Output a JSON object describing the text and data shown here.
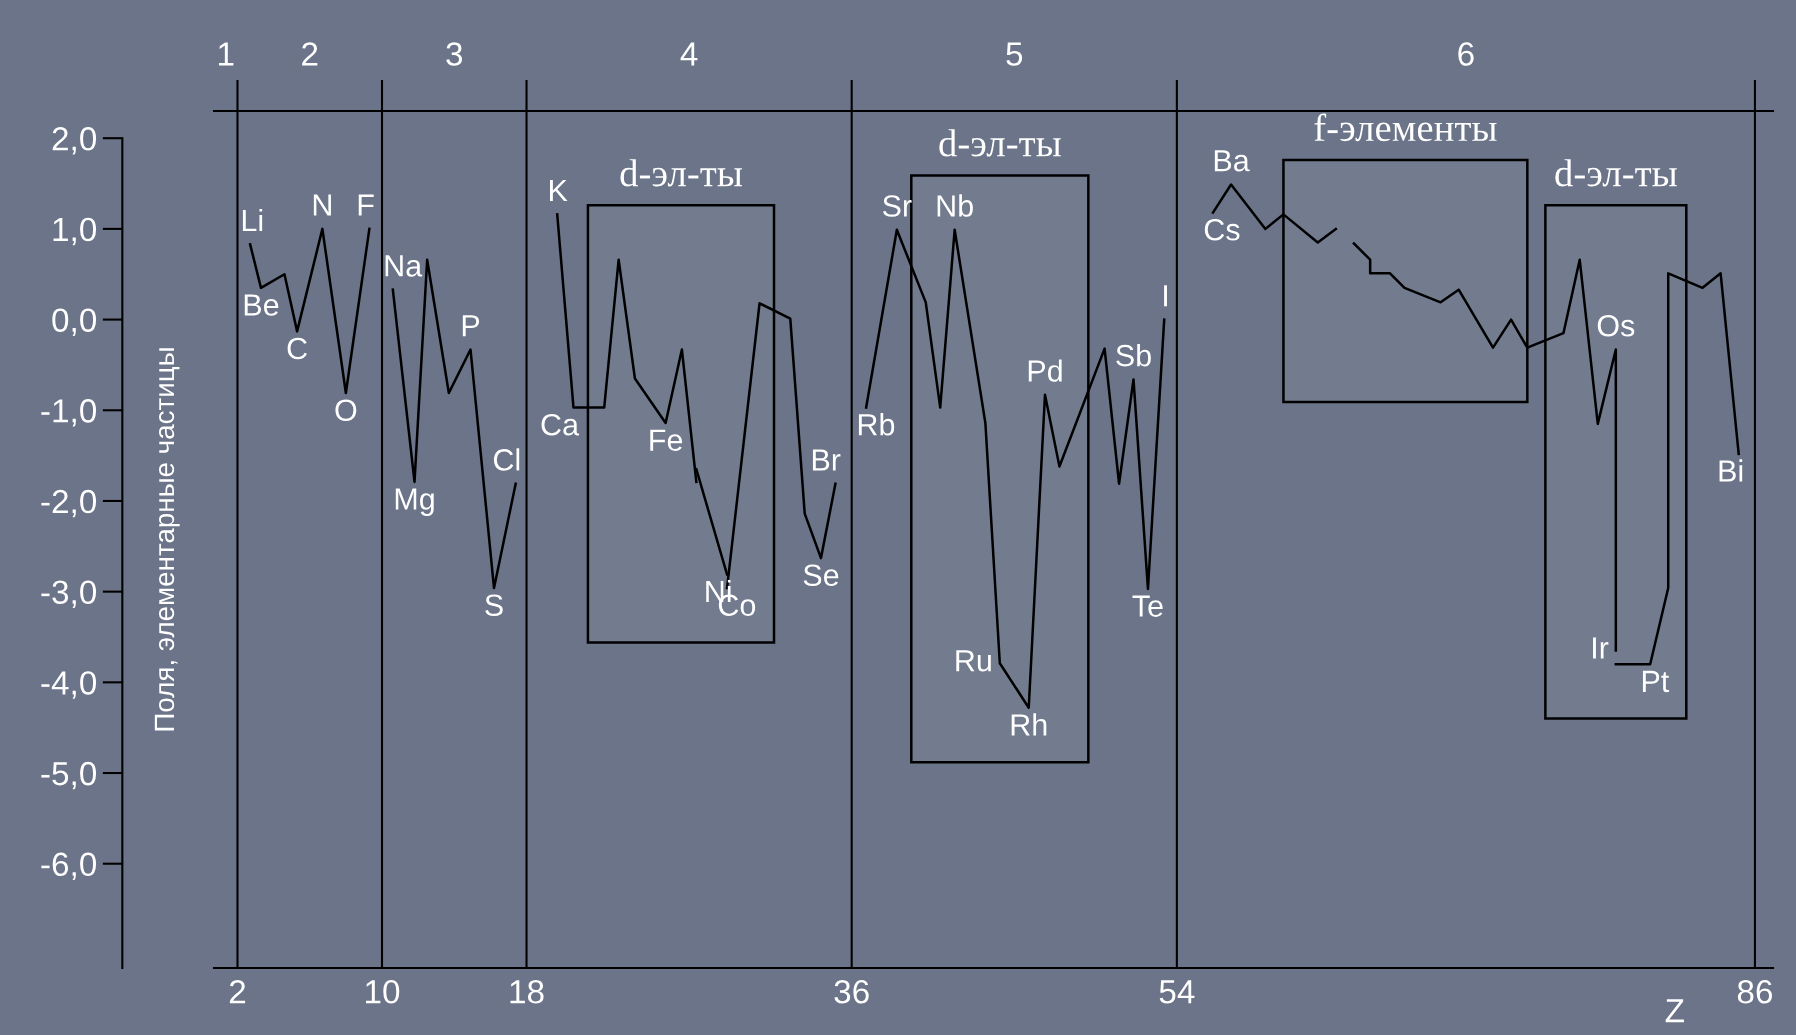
{
  "chart_data": {
    "type": "line",
    "ylabel": "Поля, элементарные частицы",
    "xlabel": "Z",
    "xlim": [
      0.7,
      87
    ],
    "ylim": [
      -7.15,
      2.3
    ],
    "xticks": [
      2,
      10,
      18,
      36,
      54,
      86
    ],
    "yticks": [
      {
        "value": 2,
        "label": "2,0"
      },
      {
        "value": 1,
        "label": "1,0"
      },
      {
        "value": 0,
        "label": "0,0"
      },
      {
        "value": -1,
        "label": "-1,0"
      },
      {
        "value": -2,
        "label": "-2,0"
      },
      {
        "value": -3,
        "label": "-3,0"
      },
      {
        "value": -4,
        "label": "-4,0"
      },
      {
        "value": -5,
        "label": "-5,0"
      },
      {
        "value": -6,
        "label": "-6,0"
      }
    ],
    "grid": false,
    "legend": false,
    "marker": "none",
    "line_style": "solid",
    "series": [
      {
        "color": "#000000",
        "x": [
          2.7,
          3.3,
          4.6,
          5.3,
          6.7,
          8.0,
          9.3
        ],
        "values": [
          0.83,
          0.35,
          0.5,
          -0.13,
          1.0,
          -0.81,
          1.0
        ]
      },
      {
        "color": "#000000",
        "x": [
          10.6,
          11.8,
          12.5,
          13.7,
          14.9,
          16.2,
          17.4
        ],
        "values": [
          0.33,
          -1.79,
          0.66,
          -0.81,
          -0.33,
          -2.96,
          -1.81
        ]
      },
      {
        "color": "#000000",
        "x": [
          19.7,
          20.6,
          22.3,
          23.1,
          24.0,
          25.7,
          26.6,
          27.4
        ],
        "values": [
          1.16,
          -0.97,
          -0.97,
          0.66,
          -0.65,
          -1.14,
          -0.33,
          -1.79
        ]
      },
      {
        "color": "#000000",
        "x": [
          27.4,
          29.1
        ],
        "values": [
          -1.65,
          -2.81
        ]
      },
      {
        "color": "#000000",
        "x": [
          29.1,
          30.9,
          32.6,
          33.4,
          34.3,
          35.1
        ],
        "values": [
          -2.96,
          0.18,
          0.01,
          -2.14,
          -2.63,
          -1.81
        ]
      },
      {
        "color": "#000000",
        "x": [
          36.8,
          38.5,
          40.1,
          40.9,
          41.7,
          43.4,
          44.2,
          45.8,
          46.7,
          47.5,
          50.0,
          50.8,
          51.6,
          52.4,
          53.3
        ],
        "values": [
          -0.97,
          0.99,
          0.19,
          -0.97,
          0.99,
          -1.14,
          -3.79,
          -4.28,
          -0.83,
          -1.62,
          -0.32,
          -1.81,
          -0.66,
          -2.97,
          0.0
        ]
      },
      {
        "color": "#000000",
        "x": [
          56.0,
          57.0,
          58.9,
          59.9,
          61.8,
          62.8
        ],
        "values": [
          1.18,
          1.49,
          1.0,
          1.16,
          0.85,
          1.0
        ]
      },
      {
        "color": "#000000",
        "x": [
          63.8,
          64.7,
          64.7,
          65.8,
          66.6,
          68.6,
          69.6,
          71.5,
          72.5,
          73.4,
          75.4,
          76.3,
          77.3,
          78.3,
          78.3
        ],
        "values": [
          0.84,
          0.66,
          0.51,
          0.51,
          0.35,
          0.19,
          0.33,
          -0.31,
          0.0,
          -0.31,
          -0.15,
          0.66,
          -1.15,
          -0.33,
          -3.65
        ]
      },
      {
        "color": "#000000",
        "x": [
          78.3,
          80.2,
          81.2,
          81.2,
          83.1,
          84.1,
          85.1
        ],
        "values": [
          -3.8,
          -3.8,
          -2.96,
          0.51,
          0.35,
          0.51,
          -1.48
        ]
      }
    ],
    "ref_lines": [
      {
        "axis": "x",
        "value": 2,
        "color": "#000000"
      },
      {
        "axis": "x",
        "value": 10,
        "color": "#000000"
      },
      {
        "axis": "x",
        "value": 18,
        "color": "#000000"
      },
      {
        "axis": "x",
        "value": 36,
        "color": "#000000"
      },
      {
        "axis": "x",
        "value": 54,
        "color": "#000000"
      },
      {
        "axis": "x",
        "value": 86,
        "color": "#000000"
      }
    ],
    "bands": [
      {
        "axis": "x",
        "from": 21.4,
        "to": 31.7,
        "label": "d-эл-ты",
        "color": "#000000"
      },
      {
        "axis": "x",
        "from": 39.3,
        "to": 49.1,
        "label": "d-эл-ты",
        "color": "#000000"
      },
      {
        "axis": "x",
        "from": 59.9,
        "to": 73.4,
        "label": "f-элементы",
        "color": "#000000"
      },
      {
        "axis": "x",
        "from": 74.4,
        "to": 82.2,
        "label": "d-эл-ты",
        "color": "#000000"
      }
    ],
    "annotations": [
      "1",
      "2",
      "3",
      "4",
      "5",
      "6",
      {
        "text": "Li",
        "x": 2.7,
        "y": 0.83
      },
      {
        "text": "Be",
        "x": 3.3,
        "y": 0.35
      },
      {
        "text": "C",
        "x": 5.3,
        "y": -0.13
      },
      {
        "text": "N",
        "x": 6.7,
        "y": 1.0
      },
      {
        "text": "O",
        "x": 8.0,
        "y": -0.81
      },
      {
        "text": "F",
        "x": 9.3,
        "y": 1.0
      },
      {
        "text": "Na",
        "x": 10.6,
        "y": 0.33
      },
      {
        "text": "Mg",
        "x": 11.8,
        "y": -1.79
      },
      {
        "text": "P",
        "x": 14.9,
        "y": -0.33
      },
      {
        "text": "S",
        "x": 16.2,
        "y": -2.96
      },
      {
        "text": "Cl",
        "x": 17.4,
        "y": -1.81
      },
      {
        "text": "K",
        "x": 19.7,
        "y": 1.16
      },
      {
        "text": "Ca",
        "x": 20.6,
        "y": -0.97
      },
      {
        "text": "Fe",
        "x": 25.7,
        "y": -1.14
      },
      {
        "text": "Ni",
        "x": 29.1,
        "y": -2.81
      },
      {
        "text": "Co",
        "x": 29.1,
        "y": -2.96
      },
      {
        "text": "Se",
        "x": 34.3,
        "y": -2.63
      },
      {
        "text": "Br",
        "x": 35.1,
        "y": -1.81
      },
      {
        "text": "Sr",
        "x": 38.5,
        "y": 0.99
      },
      {
        "text": "Rb",
        "x": 36.8,
        "y": -0.97
      },
      {
        "text": "Nb",
        "x": 41.7,
        "y": 0.99
      },
      {
        "text": "Pd",
        "x": 46.7,
        "y": -0.83
      },
      {
        "text": "Ru",
        "x": 44.2,
        "y": -3.79
      },
      {
        "text": "Rh",
        "x": 45.8,
        "y": -4.28
      },
      {
        "text": "Sb",
        "x": 51.6,
        "y": -0.66
      },
      {
        "text": "I",
        "x": 53.3,
        "y": 0.0
      },
      {
        "text": "Te",
        "x": 52.4,
        "y": -2.97
      },
      {
        "text": "Ba",
        "x": 57.0,
        "y": 1.49
      },
      {
        "text": "Cs",
        "x": 56.0,
        "y": 1.18
      },
      {
        "text": "Os",
        "x": 78.3,
        "y": -0.33
      },
      {
        "text": "Ir",
        "x": 78.3,
        "y": -3.65
      },
      {
        "text": "Pt",
        "x": 80.2,
        "y": -3.8
      },
      {
        "text": "Bi",
        "x": 85.1,
        "y": -1.48
      }
    ]
  }
}
